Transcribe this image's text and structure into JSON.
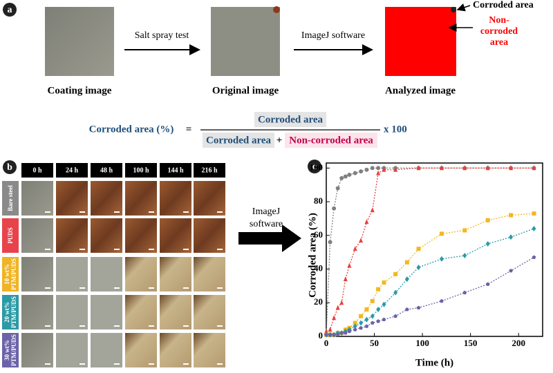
{
  "panel_a": {
    "label": "a",
    "steps": [
      "Coating image",
      "Original image",
      "Analyzed image"
    ],
    "arrows": [
      "Salt spray test",
      "ImageJ software"
    ],
    "annotations": [
      "Corroded area",
      "Non-corroded area"
    ],
    "formula": {
      "lhs": "Corroded area (%)",
      "equals": "=",
      "numerator": "Corroded area",
      "denominator_1": "Corroded area",
      "plus": "+",
      "denominator_2": "Non-corroded area",
      "multiplier": "x 100"
    }
  },
  "panel_b": {
    "label": "b",
    "columns": [
      "0 h",
      "24 h",
      "48 h",
      "100 h",
      "144 h",
      "216 h"
    ],
    "rows": [
      "Bare steel",
      "PUDS",
      "10 wt% PTM/PUDS",
      "20 wt% PTM/PUDS",
      "30 wt% PTM/PUDS"
    ],
    "arrow": "ImageJ software"
  },
  "chart_data": {
    "type": "line",
    "panel_label": "c",
    "x_label": "Time (h)",
    "y_label": "Corroded area (%)",
    "xlim": [
      0,
      225
    ],
    "ylim": [
      0,
      103
    ],
    "xticks": [
      0,
      50,
      100,
      150,
      200
    ],
    "yticks": [
      0,
      20,
      40,
      60,
      80,
      100
    ],
    "series": [
      {
        "color": "#808080",
        "marker": "circle",
        "x": [
          0,
          4,
          8,
          12,
          16,
          20,
          24,
          30,
          36,
          42,
          48,
          54,
          60,
          72,
          96,
          120,
          144,
          168,
          192,
          216
        ],
        "values": [
          1,
          56,
          76,
          88,
          94,
          95,
          96,
          97,
          98,
          99,
          100,
          100,
          100,
          100,
          100,
          100,
          100,
          100,
          100,
          100
        ]
      },
      {
        "color": "#e8413c",
        "marker": "triangle",
        "x": [
          0,
          4,
          8,
          12,
          16,
          20,
          24,
          30,
          36,
          42,
          48,
          54,
          60,
          72,
          96,
          120,
          144,
          168,
          192,
          216
        ],
        "values": [
          3,
          4,
          11,
          17,
          20,
          34,
          42,
          52,
          57,
          68,
          75,
          97,
          99,
          99,
          100,
          100,
          100,
          100,
          100,
          100
        ]
      },
      {
        "color": "#f2b81f",
        "marker": "square",
        "x": [
          0,
          4,
          8,
          12,
          16,
          20,
          24,
          30,
          36,
          42,
          48,
          54,
          60,
          72,
          84,
          96,
          120,
          144,
          168,
          192,
          216
        ],
        "values": [
          1,
          1,
          1,
          2,
          2,
          4,
          5,
          8,
          12,
          16,
          21,
          28,
          32,
          37,
          44,
          52,
          61,
          63,
          69,
          72,
          73
        ]
      },
      {
        "color": "#2a9aa8",
        "marker": "diamond",
        "x": [
          0,
          4,
          8,
          12,
          16,
          20,
          24,
          30,
          36,
          42,
          48,
          54,
          60,
          72,
          84,
          96,
          120,
          144,
          168,
          192,
          216
        ],
        "values": [
          1,
          1,
          1,
          2,
          2,
          3,
          4,
          6,
          8,
          10,
          12,
          16,
          19,
          26,
          34,
          41,
          46,
          48,
          55,
          59,
          64
        ]
      },
      {
        "color": "#6a62a6",
        "marker": "pentagon",
        "x": [
          0,
          4,
          8,
          12,
          16,
          20,
          24,
          30,
          36,
          42,
          48,
          54,
          60,
          72,
          84,
          96,
          120,
          144,
          168,
          192,
          216
        ],
        "values": [
          1,
          1,
          1,
          1,
          2,
          2,
          3,
          4,
          5,
          6,
          8,
          9,
          10,
          12,
          16,
          17,
          21,
          26,
          31,
          39,
          47
        ]
      }
    ]
  }
}
